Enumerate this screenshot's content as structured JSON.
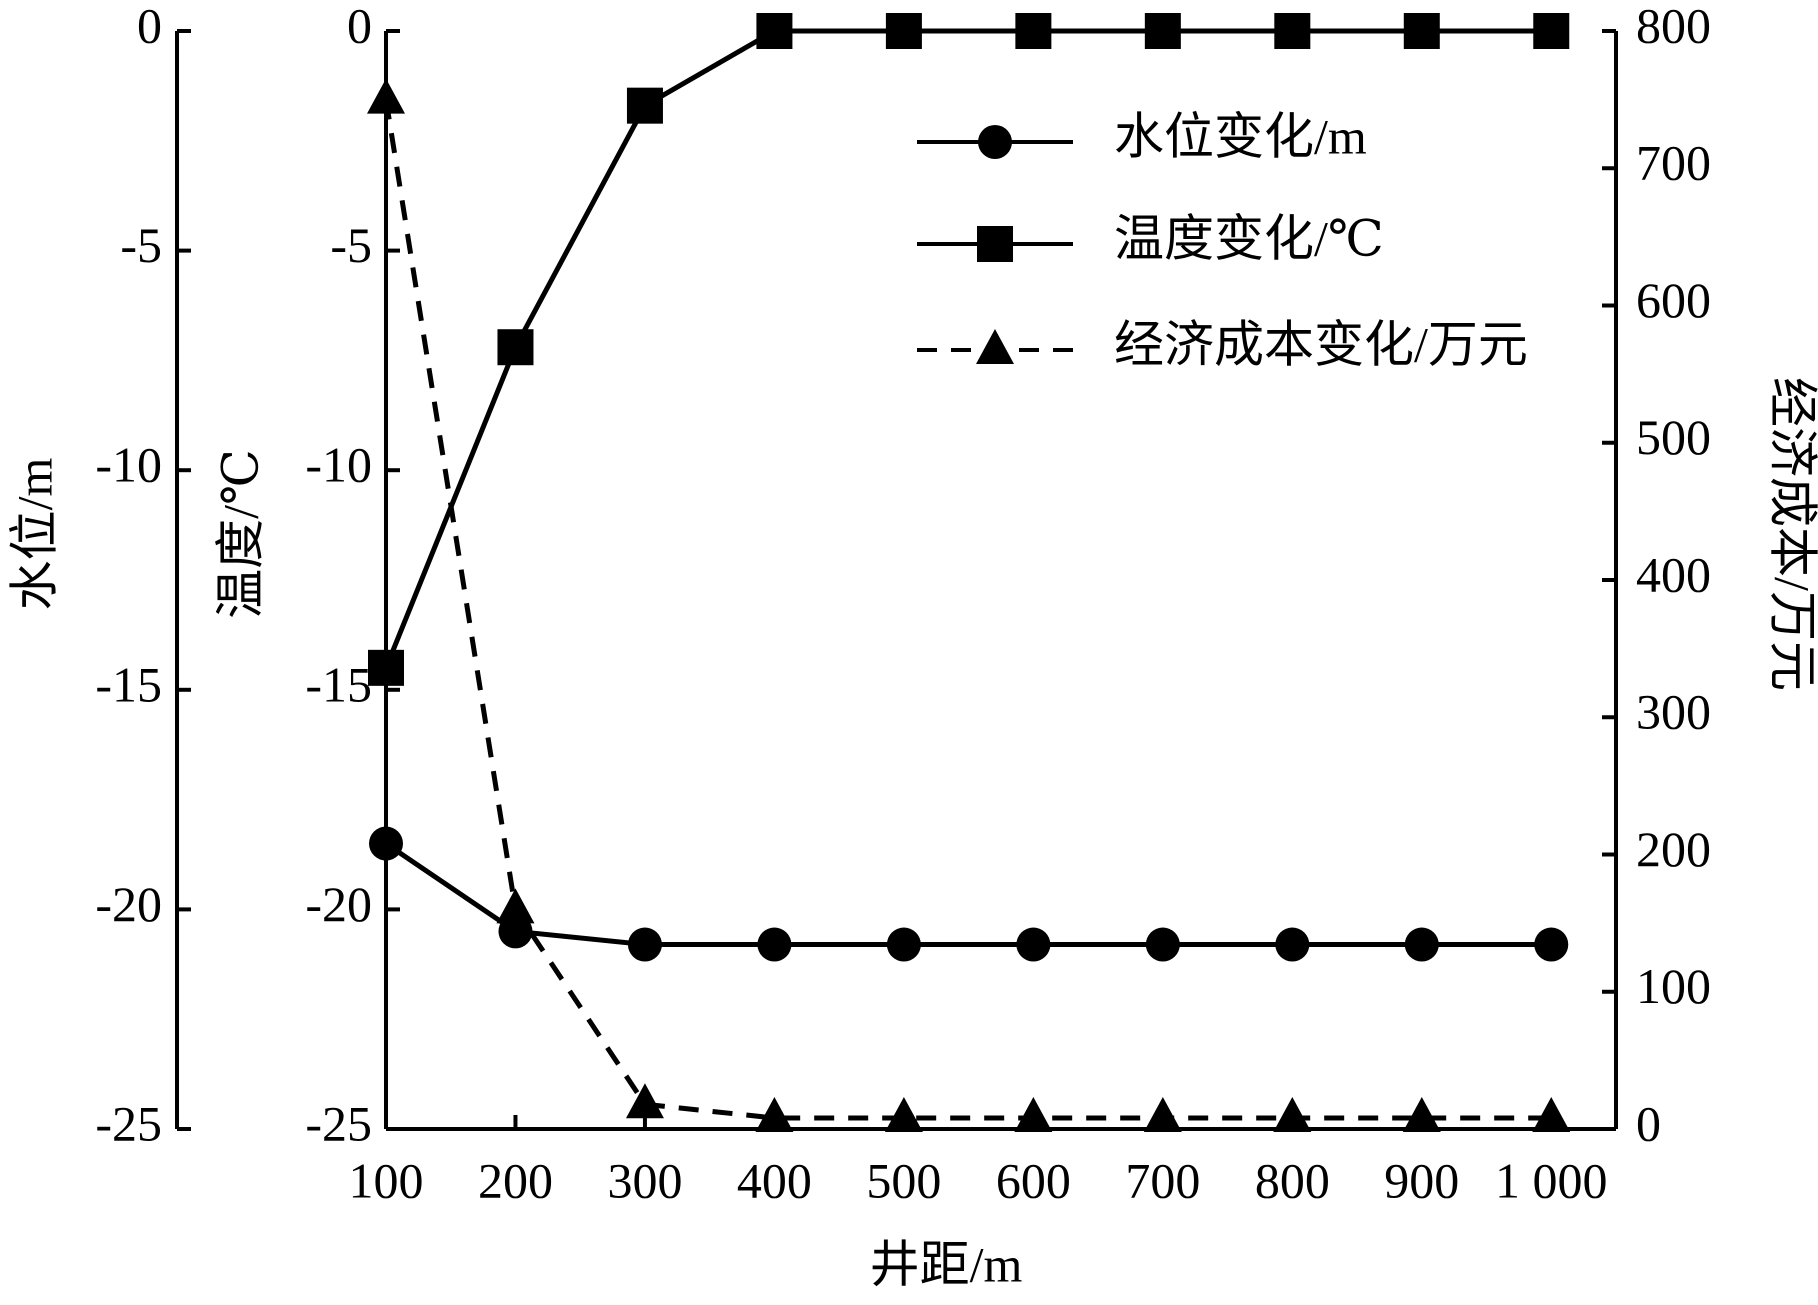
{
  "chart_data": {
    "type": "line",
    "x": [
      100,
      200,
      300,
      400,
      500,
      600,
      700,
      800,
      900,
      1000
    ],
    "xlim": [
      100,
      1050
    ],
    "xticks": [
      100,
      200,
      300,
      400,
      500,
      600,
      700,
      800,
      900,
      {
        "value": 1000,
        "label": "1 000"
      }
    ],
    "xlabel": "井距/m",
    "ylabel": "水位/m",
    "ylim": [
      -25,
      0
    ],
    "yticks": [
      0,
      -5,
      -10,
      -15,
      -20,
      -25
    ],
    "y2label": "温度/℃",
    "y2lim": [
      -25,
      0
    ],
    "y2ticks": [
      0,
      -5,
      -10,
      -15,
      -20,
      -25
    ],
    "y3label": "经济成本/万元",
    "y3lim": [
      0,
      800
    ],
    "y3ticks": [
      0,
      100,
      200,
      300,
      400,
      500,
      600,
      700,
      800
    ],
    "legend": "upper right",
    "series": [
      {
        "name": "水位变化/m",
        "color": "#000000",
        "marker": "circle",
        "linestyle": "solid",
        "axis": "y",
        "values": [
          -18.5,
          -20.5,
          -20.8,
          -20.8,
          -20.8,
          -20.8,
          -20.8,
          -20.8,
          -20.8,
          -20.8
        ]
      },
      {
        "name": "温度变化/℃",
        "color": "#000000",
        "marker": "square",
        "linestyle": "solid",
        "axis": "y2",
        "values": [
          -14.5,
          -7.2,
          -1.7,
          0,
          0,
          0,
          0,
          0,
          0,
          0
        ]
      },
      {
        "name": "经济成本变化/万元",
        "color": "#000000",
        "marker": "triangle",
        "linestyle": "dashed",
        "axis": "y3",
        "values": [
          750,
          160,
          18,
          8,
          8,
          8,
          8,
          8,
          8,
          8
        ]
      }
    ]
  }
}
